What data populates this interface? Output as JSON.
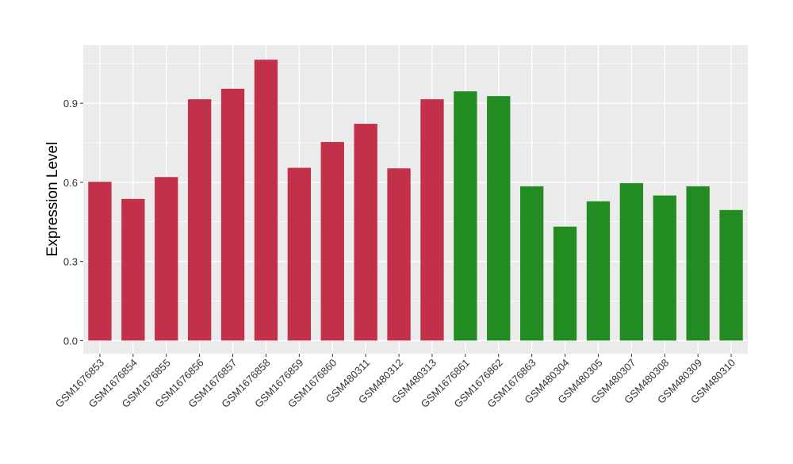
{
  "chart_data": {
    "type": "bar",
    "title": "",
    "xlabel": "",
    "ylabel": "Expression Level",
    "ylim": [
      -0.05,
      1.12
    ],
    "yticks": [
      0.0,
      0.3,
      0.6,
      0.9
    ],
    "ytick_labels": [
      "0.0",
      "0.3",
      "0.6",
      "0.9"
    ],
    "grid": true,
    "legend": "none",
    "categories": [
      "GSM1676853",
      "GSM1676854",
      "GSM1676855",
      "GSM1676856",
      "GSM1676857",
      "GSM1676858",
      "GSM1676859",
      "GSM1676860",
      "GSM480311",
      "GSM480312",
      "GSM480313",
      "GSM1676861",
      "GSM1676862",
      "GSM1676863",
      "GSM480304",
      "GSM480305",
      "GSM480307",
      "GSM480308",
      "GSM480309",
      "GSM480310"
    ],
    "values": [
      0.602,
      0.537,
      0.62,
      0.915,
      0.955,
      1.065,
      0.655,
      0.753,
      0.822,
      0.653,
      0.915,
      0.945,
      0.927,
      0.585,
      0.432,
      0.528,
      0.597,
      0.55,
      0.585,
      0.495
    ],
    "groups": [
      0,
      0,
      0,
      0,
      0,
      0,
      0,
      0,
      0,
      0,
      0,
      1,
      1,
      1,
      1,
      1,
      1,
      1,
      1,
      1
    ],
    "group_colors": [
      "#c3304a",
      "#228b22"
    ],
    "panel_background": "#ebebeb",
    "grid_color": "#ffffff"
  }
}
